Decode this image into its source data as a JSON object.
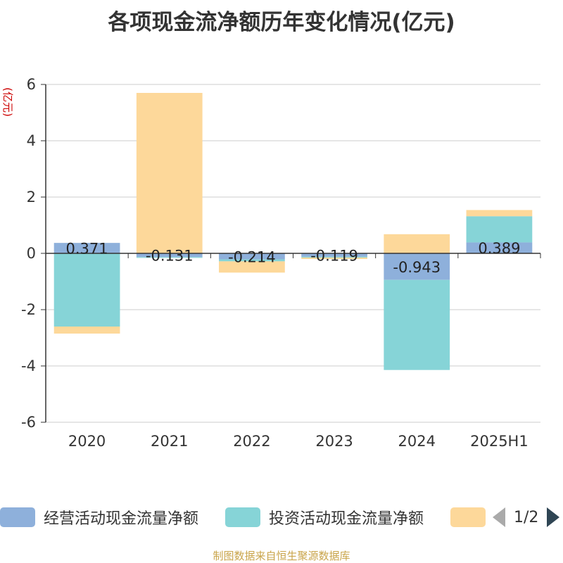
{
  "chart_data": {
    "type": "bar",
    "stacked": true,
    "title": "各项现金流净额历年变化情况(亿元)",
    "ylabel": "(亿元)",
    "xlabel": "",
    "categories": [
      "2020",
      "2021",
      "2022",
      "2023",
      "2024",
      "2025H1"
    ],
    "ylim": [
      -6,
      6
    ],
    "yticks": [
      6,
      4,
      2,
      0,
      -2,
      -4,
      -6
    ],
    "grid": true,
    "series": [
      {
        "name": "经营活动现金流量净额",
        "color": "#8eb0db",
        "values": [
          0.371,
          -0.131,
          -0.214,
          -0.119,
          -0.943,
          0.389
        ],
        "show_labels": true
      },
      {
        "name": "投资活动现金流量净额",
        "color": "#86d4d7",
        "values": [
          -2.6,
          -0.03,
          -0.07,
          -0.03,
          -3.2,
          0.93
        ],
        "show_labels": false
      },
      {
        "name": "",
        "color": "#fdd89a",
        "values": [
          -0.25,
          5.7,
          -0.4,
          -0.05,
          0.68,
          0.22
        ],
        "show_labels": false
      }
    ],
    "legend": {
      "position": "bottom",
      "page": "1/2"
    }
  },
  "source": "制图数据来自恒生聚源数据库"
}
